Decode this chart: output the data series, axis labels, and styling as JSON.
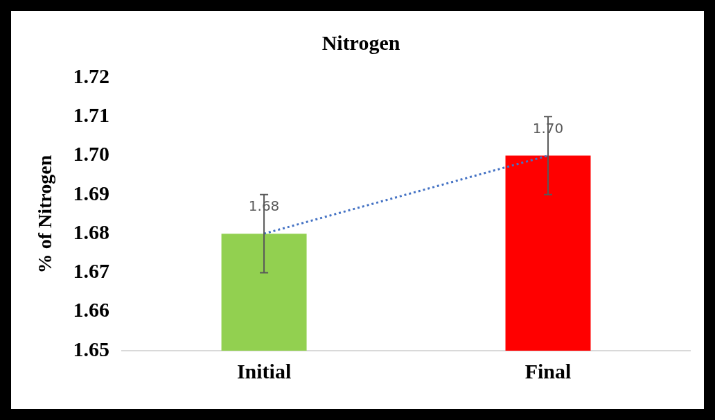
{
  "chart_data": {
    "type": "bar",
    "title": "Nitrogen",
    "ylabel": "% of Nitrogen",
    "categories": [
      "Initial",
      "Final"
    ],
    "series": [
      {
        "colors": [
          "#92d050",
          "#ff0000"
        ],
        "values": [
          1.68,
          1.7
        ],
        "errors": [
          0.01,
          0.01
        ],
        "value_labels": [
          "1.68",
          "1.70"
        ]
      },
      {
        "type": "line",
        "color": "#4472c4",
        "values": [
          1.68,
          1.7
        ],
        "marker": "none",
        "line_style": "dotted"
      }
    ],
    "ylim": [
      1.65,
      1.72
    ],
    "yticks": [
      {
        "value": 1.65,
        "label": "1.65"
      },
      {
        "value": 1.66,
        "label": "1.66"
      },
      {
        "value": 1.67,
        "label": "1.67"
      },
      {
        "value": 1.68,
        "label": "1.68"
      },
      {
        "value": 1.69,
        "label": "1.69"
      },
      {
        "value": 1.7,
        "label": "1.70"
      },
      {
        "value": 1.71,
        "label": "1.71"
      },
      {
        "value": 1.72,
        "label": "1.72"
      }
    ],
    "grid": false,
    "legend": false
  }
}
